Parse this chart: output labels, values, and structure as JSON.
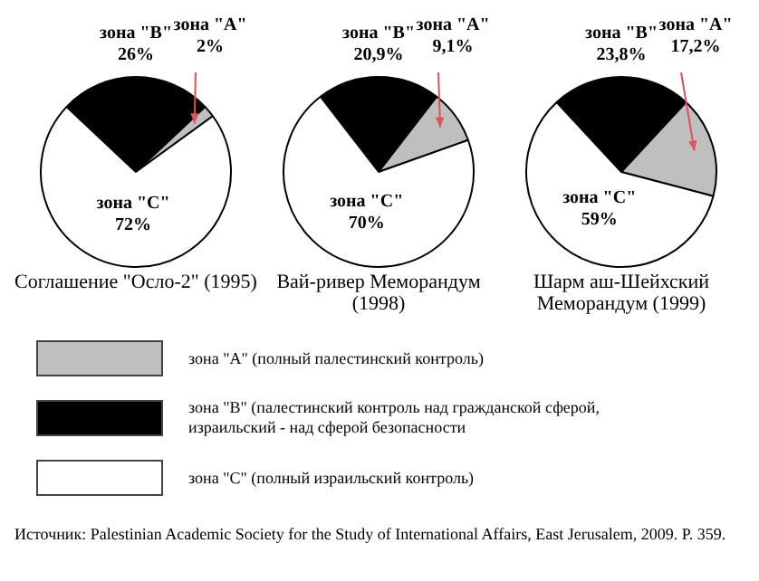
{
  "chart_data": [
    {
      "type": "pie",
      "title": "Соглашение \"Осло-2\" (1995)",
      "categories": [
        "зона \"B\"",
        "зона \"A\"",
        "зона \"C\""
      ],
      "values": [
        26,
        2,
        72
      ],
      "value_labels": [
        "26%",
        "2%",
        "72%"
      ],
      "colors": [
        "#000000",
        "#bfbfbf",
        "#ffffff"
      ],
      "legend": false
    },
    {
      "type": "pie",
      "title": "Вай-ривер Меморандум (1998)",
      "categories": [
        "зона \"B\"",
        "зона \"A\"",
        "зона \"C\""
      ],
      "values": [
        20.9,
        9.1,
        70
      ],
      "value_labels": [
        "20,9%",
        "9,1%",
        "70%"
      ],
      "colors": [
        "#000000",
        "#bfbfbf",
        "#ffffff"
      ],
      "legend": false
    },
    {
      "type": "pie",
      "title": "Шарм аш-Шейхский Меморандум (1999)",
      "categories": [
        "зона \"B\"",
        "зона \"A\"",
        "зона \"C\""
      ],
      "values": [
        23.8,
        17.2,
        59
      ],
      "value_labels": [
        "23,8%",
        "17,2%",
        "59%"
      ],
      "colors": [
        "#000000",
        "#bfbfbf",
        "#ffffff"
      ],
      "legend": false
    },
    {
      "type": "other",
      "annotations": [
        "зона \"A\" (полный палестинский контроль)",
        "зона \"B\" (палестинский контроль над гражданской сферой, израильский - над сферой безопасности",
        "зона \"C\" (полный израильский контроль)",
        "Источник: Palestinian Academic Society for the Study of International Affairs, East Jerusalem, 2009. P. 359."
      ]
    }
  ]
}
